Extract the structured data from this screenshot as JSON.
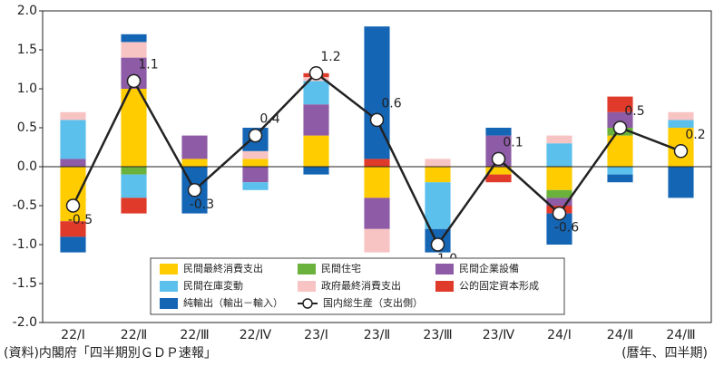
{
  "chart_data": {
    "type": "bar",
    "categories": [
      "22/Ⅰ",
      "22/Ⅱ",
      "22/Ⅲ",
      "22/Ⅳ",
      "23/Ⅰ",
      "23/Ⅱ",
      "23/Ⅲ",
      "23/Ⅳ",
      "24/Ⅰ",
      "24/Ⅱ",
      "24/Ⅲ"
    ],
    "series": [
      {
        "name": "民間最終消費支出",
        "color": "#ffcc00",
        "values": [
          -0.7,
          1.0,
          0.1,
          0.1,
          0.4,
          -0.4,
          -0.2,
          -0.1,
          -0.3,
          0.4,
          0.5
        ]
      },
      {
        "name": "民間住宅",
        "color": "#6ab23c",
        "values": [
          0,
          -0.1,
          0,
          0,
          0,
          0,
          0,
          0,
          -0.1,
          0.1,
          0
        ]
      },
      {
        "name": "民間企業設備",
        "color": "#8e5ba6",
        "values": [
          0.1,
          0.4,
          0.3,
          -0.2,
          0.4,
          -0.4,
          0,
          0.4,
          -0.1,
          0.2,
          0
        ]
      },
      {
        "name": "民間在庫変動",
        "color": "#5bc0eb",
        "values": [
          0.5,
          -0.3,
          0,
          -0.1,
          0.3,
          0,
          -0.6,
          0,
          0.3,
          -0.1,
          0.1
        ]
      },
      {
        "name": "政府最終消費支出",
        "color": "#f8c3c3",
        "values": [
          0.1,
          0.2,
          0,
          0.1,
          0.05,
          -0.3,
          0.1,
          0,
          0.1,
          0,
          0.1
        ]
      },
      {
        "name": "公的固定資本形成",
        "color": "#e03a2a",
        "values": [
          -0.2,
          -0.2,
          0,
          0,
          0.05,
          0.1,
          0,
          -0.1,
          -0.1,
          0.2,
          0
        ]
      },
      {
        "name": "純輸出（輸出－輸入）",
        "color": "#1565b5",
        "values": [
          -0.2,
          0.1,
          -0.6,
          0.3,
          -0.1,
          1.7,
          -0.3,
          0.1,
          -0.4,
          -0.1,
          -0.4
        ]
      }
    ],
    "line": {
      "name": "国内総生産（支出側）",
      "color": "#222222",
      "values": [
        -0.5,
        1.1,
        -0.3,
        0.4,
        1.2,
        0.6,
        -1.0,
        0.1,
        -0.6,
        0.5,
        0.2
      ],
      "value_labels": [
        "-0.5",
        "1.1",
        "-0.3",
        "0.4",
        "1.2",
        "0.6",
        "-1.0",
        "0.1",
        "-0.6",
        "0.5",
        "0.2"
      ]
    },
    "ylim": [
      -2,
      2
    ],
    "yticks": [
      {
        "value": -2,
        "label": "-2.0"
      },
      -1.5,
      {
        "value": -1,
        "label": "-1.0"
      },
      -0.5,
      {
        "value": 0,
        "label": "0.0"
      },
      0.5,
      {
        "value": 1,
        "label": "1.0"
      },
      1.5,
      {
        "value": 2,
        "label": "2.0"
      }
    ],
    "source": "(資料)内閣府「四半期別ＧＤＰ速報」",
    "x_note": "(暦年、四半期)"
  }
}
